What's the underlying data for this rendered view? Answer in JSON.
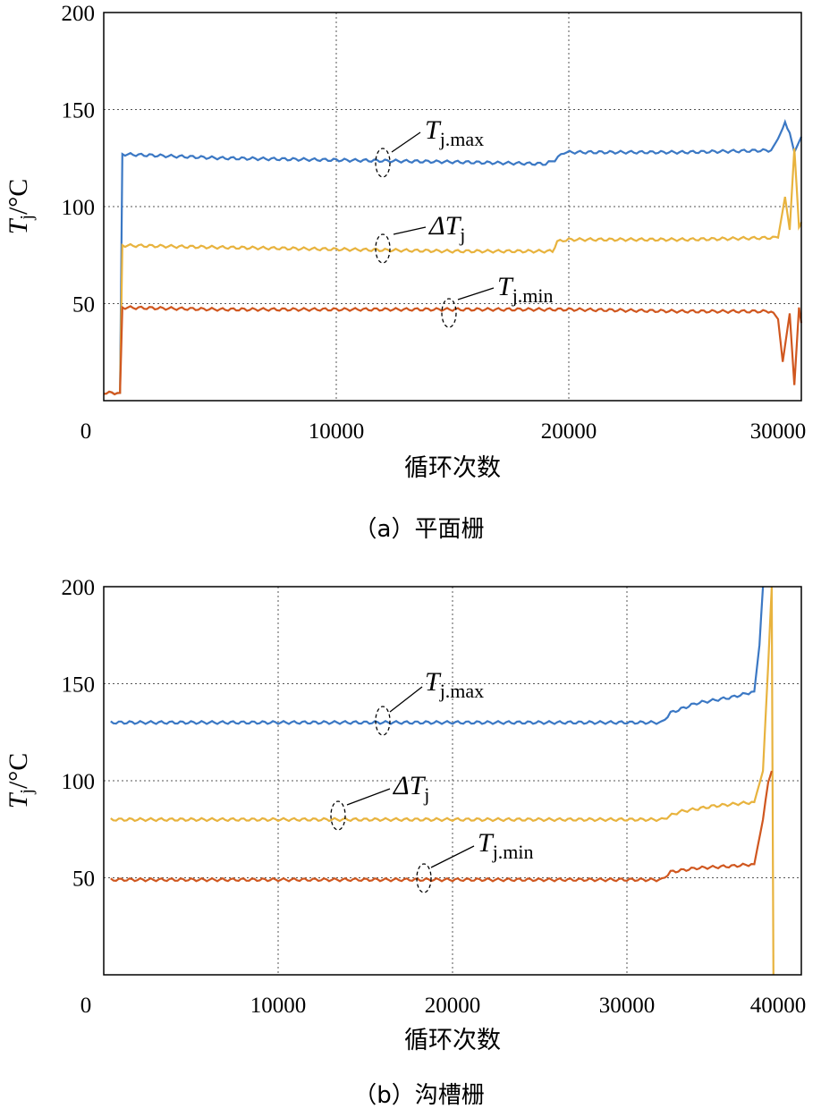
{
  "colors": {
    "tjmax": "#3b78c4",
    "dtj": "#e8b33e",
    "tjmin": "#d0571f"
  },
  "chart_data": [
    {
      "type": "line",
      "caption": "（a）平面栅",
      "xlabel": "循环次数",
      "ylabel": {
        "main": "T",
        "sub": "j",
        "unit": "/°C"
      },
      "xlim": [
        0,
        30000
      ],
      "ylim": [
        0,
        200
      ],
      "xticks": [
        "0",
        "10000",
        "20000",
        "30000"
      ],
      "yticks": [
        "50",
        "100",
        "150",
        "200"
      ],
      "grid": true,
      "series": [
        {
          "name": "Tj.max",
          "label_main": "T",
          "label_sub": "j.max",
          "color_key": "tjmax",
          "x": [
            0,
            700,
            800,
            5000,
            10000,
            15000,
            19000,
            19400,
            19800,
            25000,
            28700,
            29000,
            29300,
            29500,
            29700,
            30000
          ],
          "y": [
            4,
            4,
            127,
            125,
            124,
            123,
            122,
            124,
            128,
            128,
            129,
            135,
            143,
            138,
            128,
            136
          ]
        },
        {
          "name": "ΔTj",
          "label_main": "ΔT",
          "label_sub": "j",
          "color_key": "dtj",
          "x": [
            0,
            700,
            800,
            5000,
            10000,
            15000,
            19300,
            19500,
            20000,
            25000,
            29000,
            29300,
            29500,
            29700,
            29900,
            30000
          ],
          "y": [
            4,
            4,
            80,
            79,
            78,
            77,
            77,
            82,
            83,
            83,
            84,
            105,
            88,
            130,
            90,
            92
          ]
        },
        {
          "name": "Tj.min",
          "label_main": "T",
          "label_sub": "j.min",
          "color_key": "tjmin",
          "x": [
            0,
            700,
            800,
            5000,
            10000,
            15000,
            20000,
            25000,
            28700,
            29000,
            29200,
            29500,
            29700,
            29900,
            30000
          ],
          "y": [
            4,
            4,
            48,
            47,
            47,
            47,
            47,
            46,
            46,
            42,
            20,
            45,
            8,
            48,
            40
          ]
        }
      ]
    },
    {
      "type": "line",
      "caption": "（b）沟槽栅",
      "xlabel": "循环次数",
      "ylabel": {
        "main": "T",
        "sub": "j",
        "unit": "/°C"
      },
      "xlim": [
        0,
        40000
      ],
      "ylim": [
        0,
        200
      ],
      "xticks": [
        "0",
        "10000",
        "20000",
        "30000",
        "40000"
      ],
      "yticks": [
        "50",
        "100",
        "150",
        "200"
      ],
      "grid": true,
      "series": [
        {
          "name": "Tj.max",
          "label_main": "T",
          "label_sub": "j.max",
          "color_key": "tjmax",
          "x": [
            400,
            5000,
            10000,
            20000,
            32000,
            32500,
            34000,
            36000,
            37300,
            37600,
            37800
          ],
          "y": [
            130,
            130,
            130,
            130,
            130,
            135,
            140,
            143,
            146,
            170,
            200
          ]
        },
        {
          "name": "ΔTj",
          "label_main": "ΔT",
          "label_sub": "j",
          "color_key": "dtj",
          "x": [
            400,
            5000,
            10000,
            20000,
            32000,
            33000,
            35000,
            37300,
            37800,
            38100,
            38300,
            38400
          ],
          "y": [
            80,
            80,
            80,
            80,
            80,
            84,
            87,
            89,
            105,
            160,
            200,
            0
          ]
        },
        {
          "name": "Tj.min",
          "label_main": "T",
          "label_sub": "j.min",
          "color_key": "tjmin",
          "x": [
            400,
            5000,
            10000,
            20000,
            32000,
            32500,
            34000,
            36000,
            37300,
            37800,
            38100,
            38300
          ],
          "y": [
            49,
            49,
            49,
            49,
            49,
            53,
            55,
            56,
            57,
            80,
            100,
            105
          ]
        }
      ]
    }
  ]
}
